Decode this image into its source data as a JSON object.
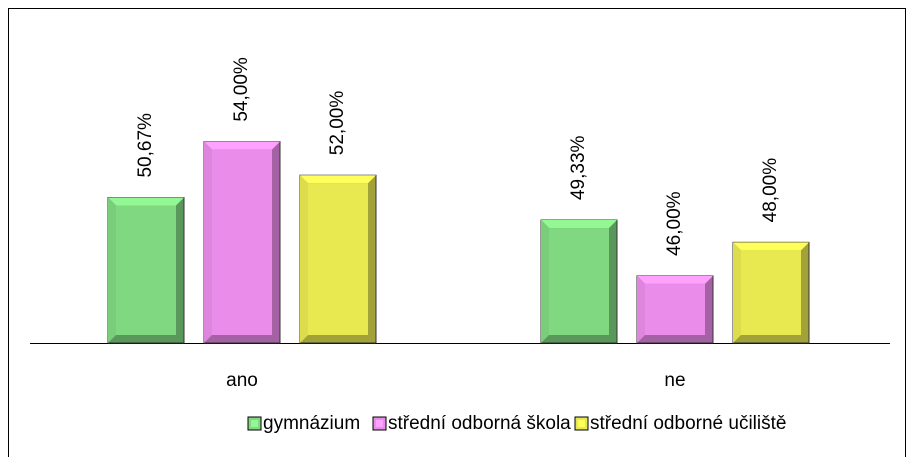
{
  "chart_data": {
    "type": "bar",
    "categories": [
      "ano",
      "ne"
    ],
    "series": [
      {
        "name": "gymnázium",
        "color": "#80d880",
        "values": [
          50.67,
          49.33
        ],
        "value_labels": [
          "50,67%",
          "49,33%"
        ]
      },
      {
        "name": "střední odborná škola",
        "color": "#ea8cea",
        "values": [
          54.0,
          46.0
        ],
        "value_labels": [
          "54,00%",
          "46,00%"
        ]
      },
      {
        "name": "střední odborné učiliště",
        "color": "#e8e850",
        "values": [
          52.0,
          48.0
        ],
        "value_labels": [
          "52,00%",
          "48,00%"
        ]
      }
    ],
    "ylim": [
      42,
      60
    ],
    "legend": "bottom"
  }
}
